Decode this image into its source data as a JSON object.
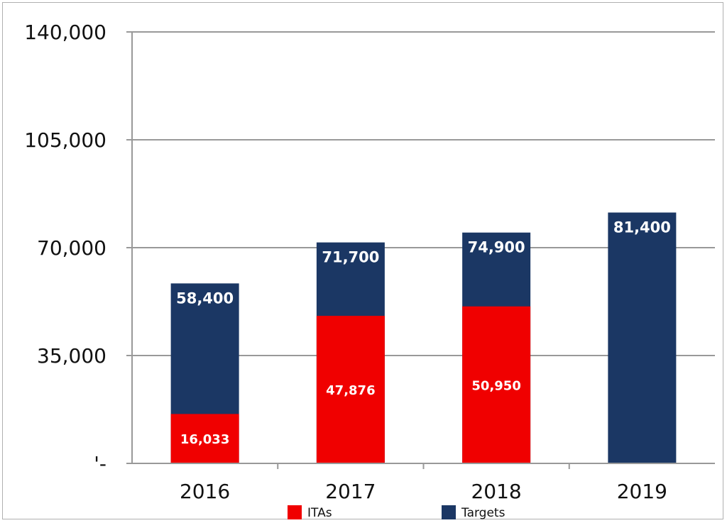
{
  "chart_data": {
    "type": "bar",
    "title": "",
    "xlabel": "",
    "ylabel": "",
    "categories": [
      "2016",
      "2017",
      "2018",
      "2019"
    ],
    "series": [
      {
        "name": "ITAs",
        "values": [
          16033,
          47876,
          50950,
          null
        ],
        "labels": [
          "16,033",
          "47,876",
          "50,950",
          ""
        ]
      },
      {
        "name": "Targets",
        "values": [
          58400,
          71700,
          74900,
          81400
        ],
        "labels": [
          "58,400",
          "71,700",
          "74,900",
          "81,400"
        ]
      }
    ],
    "ylim": [
      0,
      140000
    ],
    "yticks": [
      0,
      35000,
      70000,
      105000,
      140000
    ],
    "ytick_labels": [
      "'-",
      "35,000",
      "70,000",
      "105,000",
      "140,000"
    ],
    "grid": true,
    "legend_position": "bottom",
    "legend": [
      "ITAs",
      "Targets"
    ],
    "colors": {
      "ITAs": "#f00000",
      "Targets": "#1b3764",
      "grid": "#999999"
    }
  }
}
